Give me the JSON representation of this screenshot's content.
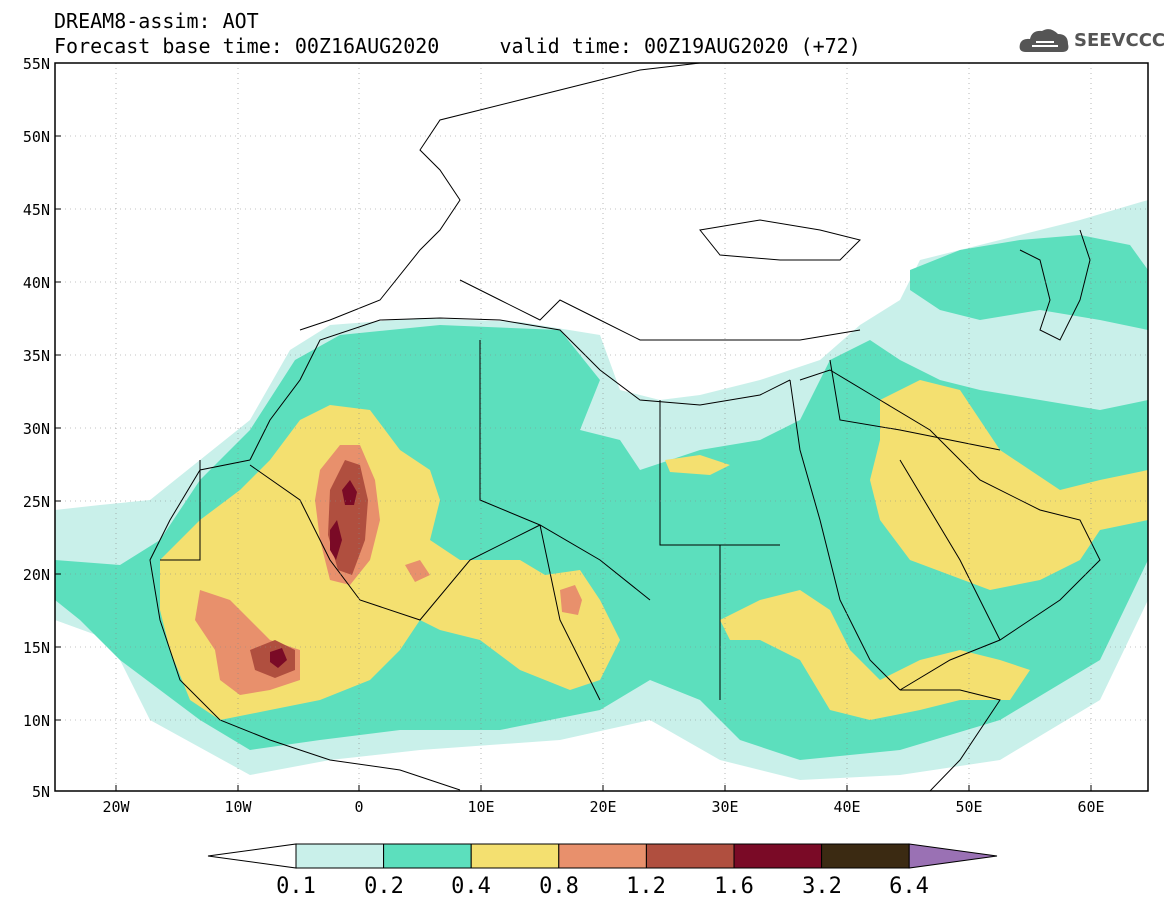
{
  "header": {
    "title_line1": "DREAM8-assim: AOT",
    "title_line2": "Forecast base time: 00Z16AUG2020     valid time: 00Z19AUG2020 (+72)",
    "logo_text": "SEEVCCC"
  },
  "map": {
    "lat_labels": [
      "55N",
      "50N",
      "45N",
      "40N",
      "35N",
      "30N",
      "25N",
      "20N",
      "15N",
      "10N",
      "5N"
    ],
    "lon_labels": [
      "20W",
      "10W",
      "0",
      "10E",
      "20E",
      "30E",
      "40E",
      "50E",
      "60E"
    ],
    "colors": {
      "c1": "#c9f0ea",
      "c2": "#5cdfbd",
      "c3": "#f4e070",
      "c4": "#e8906c",
      "c5": "#b04f3f",
      "c6": "#7a0a26",
      "c7": "#3b2a12",
      "c8": "#9a71b4"
    }
  },
  "colorbar": {
    "labels": [
      "0.1",
      "0.2",
      "0.4",
      "0.8",
      "1.2",
      "1.6",
      "3.2",
      "6.4"
    ]
  }
}
